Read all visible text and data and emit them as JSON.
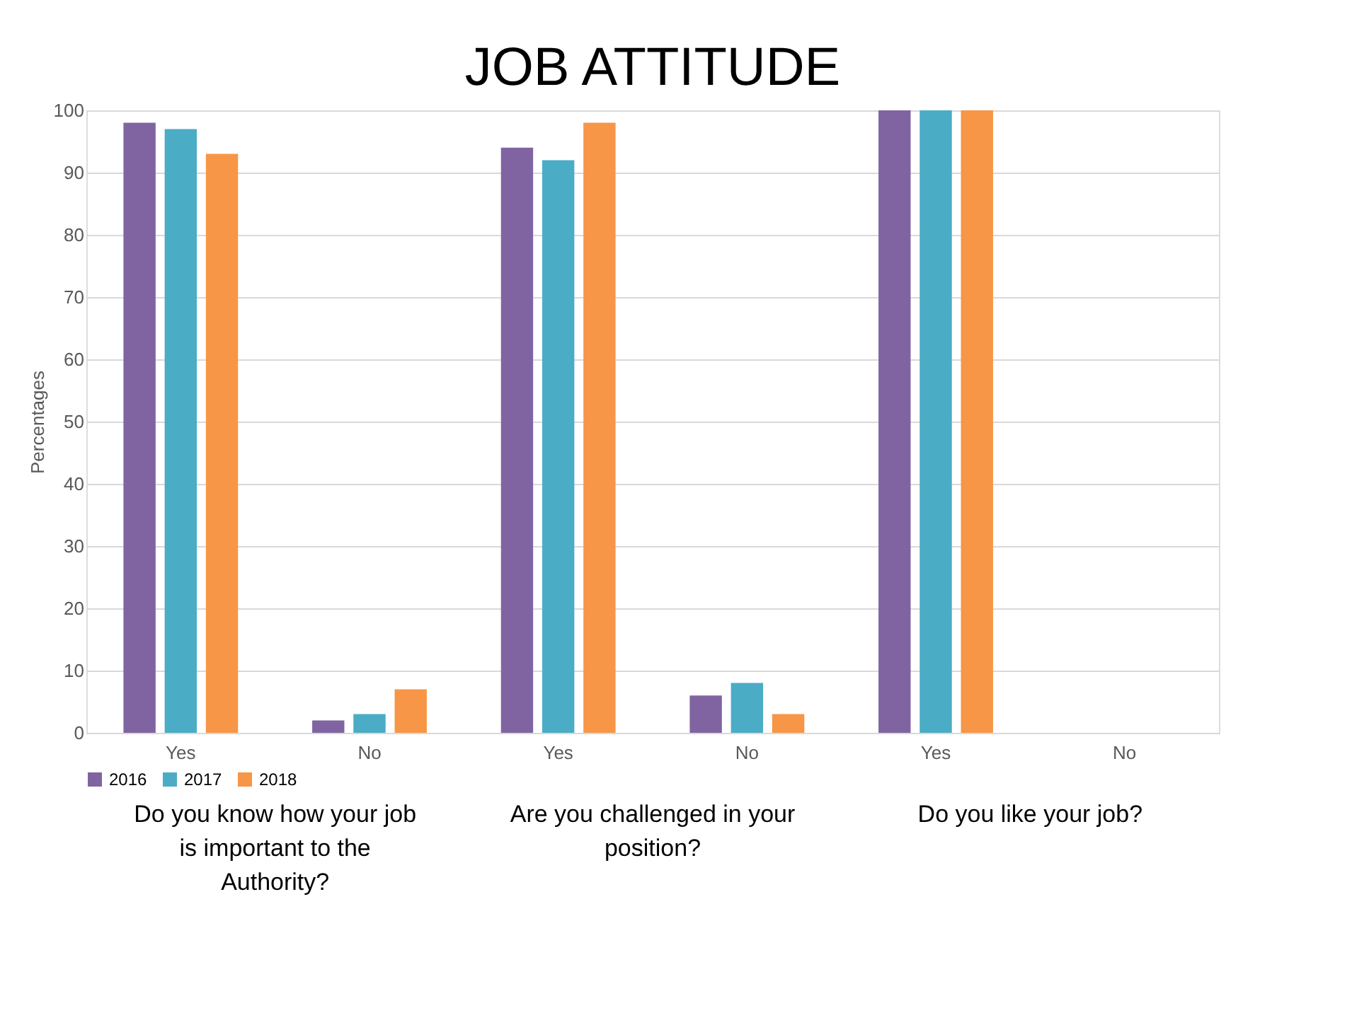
{
  "chart_data": {
    "type": "bar",
    "title": "JOB ATTITUDE",
    "ylabel": "Percentages",
    "categories": [
      "Yes",
      "No",
      "Yes",
      "No",
      "Yes",
      "No"
    ],
    "series": [
      {
        "name": "2016",
        "color": "#8064a2",
        "values": [
          98,
          2,
          94,
          6,
          100,
          0
        ]
      },
      {
        "name": "2017",
        "color": "#4bacc6",
        "values": [
          97,
          3,
          92,
          8,
          100,
          0
        ]
      },
      {
        "name": "2018",
        "color": "#f79646",
        "values": [
          93,
          7,
          98,
          3,
          100,
          0
        ]
      }
    ],
    "ylim": [
      0,
      100
    ],
    "yticks": [
      0,
      10,
      20,
      30,
      40,
      50,
      60,
      70,
      80,
      90,
      100
    ],
    "grid": "y",
    "legend": "bottom",
    "annotations": [
      "Do you know how your job is important to the Authority?",
      "Are you challenged in your position?",
      "Do you like your job?"
    ]
  }
}
